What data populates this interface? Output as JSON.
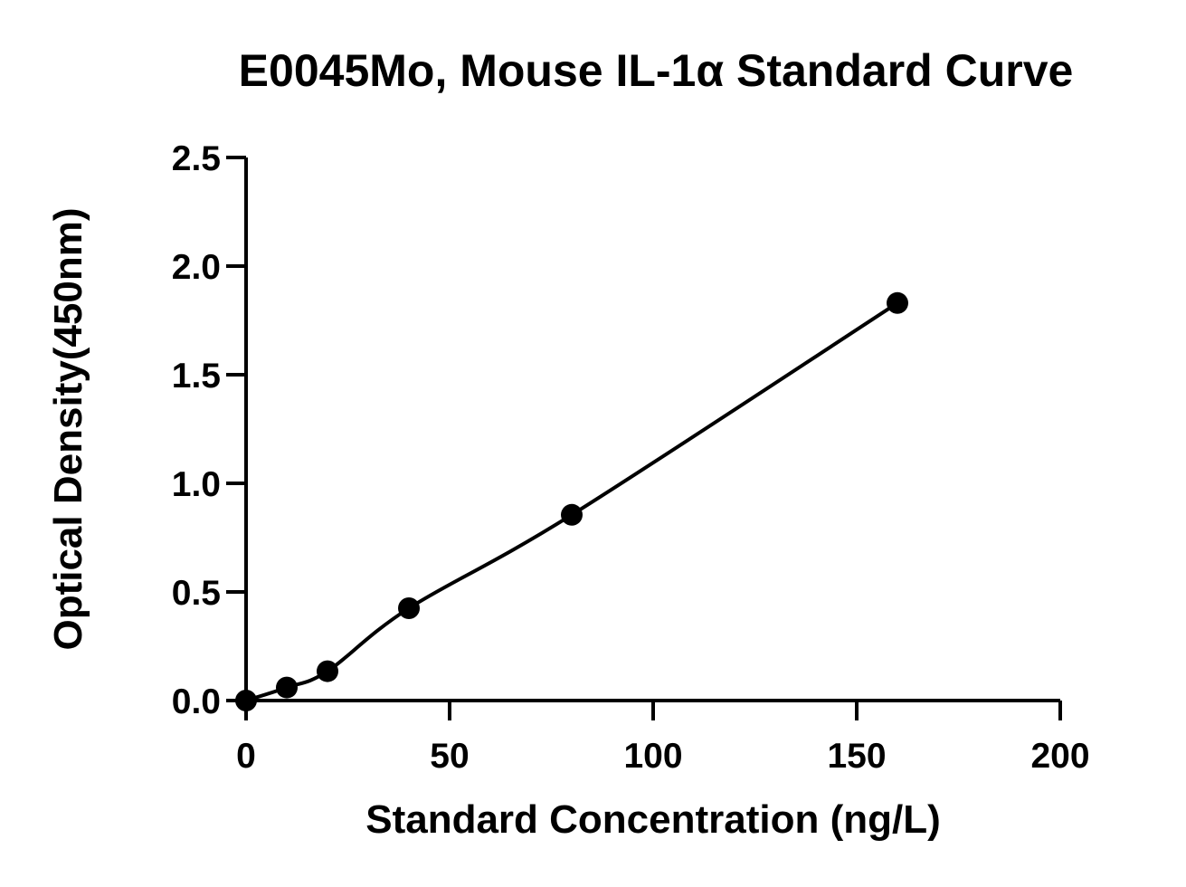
{
  "chart_data": {
    "type": "scatter",
    "title": "E0045Mo, Mouse IL-1α Standard Curve",
    "xlabel": "Standard Concentration (ng/L)",
    "ylabel": "Optical Density(450nm)",
    "xlim": [
      0,
      200
    ],
    "ylim": [
      0,
      2.5
    ],
    "xticks": [
      0,
      50,
      100,
      150,
      200
    ],
    "xtick_labels": [
      "0",
      "50",
      "100",
      "150",
      "200"
    ],
    "yticks": [
      0,
      0.5,
      1.0,
      1.5,
      2.0,
      2.5
    ],
    "ytick_labels": [
      "0.0",
      "0.5",
      "1.0",
      "1.5",
      "2.0",
      "2.5"
    ],
    "grid": false,
    "legend": "none",
    "series": [
      {
        "x": [
          0,
          10,
          20,
          40,
          80,
          160
        ],
        "y": [
          0.0,
          0.06,
          0.135,
          0.425,
          0.855,
          1.83
        ],
        "marker": "circle",
        "fit_line": true
      }
    ],
    "colors": {
      "marks": "#000000",
      "background": "#ffffff"
    }
  }
}
